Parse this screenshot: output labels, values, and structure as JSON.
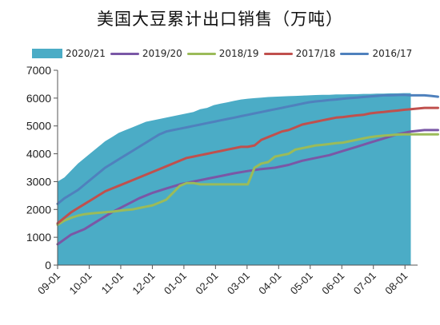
{
  "title": "美国大豆累计出口销售（万吨）",
  "colors": {
    "2020/21": "#4bacc6",
    "2019/20": "#7a57a6",
    "2018/19": "#9bbb59",
    "2017/18": "#c0504d",
    "2016/17": "#4f81bd"
  },
  "chart_data": {
    "type": "line",
    "title": "美国大豆累计出口销售（万吨）",
    "xlabel": "",
    "ylabel": "",
    "ylim": [
      0,
      7000
    ],
    "y_ticks": [
      0,
      1000,
      2000,
      3000,
      4000,
      5000,
      6000,
      7000
    ],
    "x_tick_labels": [
      "09-01",
      "10-01",
      "11-01",
      "12-01",
      "01-01",
      "02-01",
      "03-01",
      "04-01",
      "05-01",
      "06-01",
      "07-01",
      "08-01"
    ],
    "x_index_range": [
      0,
      53
    ],
    "grid": false,
    "legend_position": "top",
    "series": [
      {
        "name": "2020/21",
        "type": "area",
        "points": [
          [
            0,
            3000
          ],
          [
            1,
            3150
          ],
          [
            2,
            3400
          ],
          [
            3,
            3650
          ],
          [
            4,
            3850
          ],
          [
            5,
            4050
          ],
          [
            6,
            4250
          ],
          [
            7,
            4450
          ],
          [
            8,
            4600
          ],
          [
            9,
            4750
          ],
          [
            10,
            4850
          ],
          [
            11,
            4950
          ],
          [
            12,
            5050
          ],
          [
            13,
            5150
          ],
          [
            14,
            5200
          ],
          [
            15,
            5250
          ],
          [
            16,
            5300
          ],
          [
            17,
            5350
          ],
          [
            18,
            5400
          ],
          [
            19,
            5450
          ],
          [
            20,
            5500
          ],
          [
            21,
            5600
          ],
          [
            22,
            5650
          ],
          [
            23,
            5750
          ],
          [
            24,
            5800
          ],
          [
            25,
            5850
          ],
          [
            26,
            5900
          ],
          [
            27,
            5950
          ],
          [
            28,
            5980
          ],
          [
            29,
            6000
          ],
          [
            30,
            6020
          ],
          [
            31,
            6040
          ],
          [
            32,
            6050
          ],
          [
            33,
            6060
          ],
          [
            34,
            6070
          ],
          [
            35,
            6080
          ],
          [
            36,
            6090
          ],
          [
            37,
            6100
          ],
          [
            38,
            6110
          ],
          [
            39,
            6120
          ],
          [
            40,
            6120
          ],
          [
            41,
            6130
          ],
          [
            42,
            6130
          ],
          [
            43,
            6140
          ],
          [
            44,
            6140
          ],
          [
            45,
            6150
          ],
          [
            46,
            6150
          ],
          [
            47,
            6160
          ],
          [
            48,
            6160
          ],
          [
            49,
            6170
          ],
          [
            50,
            6170
          ],
          [
            51,
            6180
          ],
          [
            52,
            6180
          ]
        ]
      },
      {
        "name": "2019/20",
        "type": "line",
        "points": [
          [
            0,
            750
          ],
          [
            2,
            1100
          ],
          [
            4,
            1300
          ],
          [
            6,
            1600
          ],
          [
            8,
            1900
          ],
          [
            10,
            2150
          ],
          [
            12,
            2400
          ],
          [
            14,
            2600
          ],
          [
            16,
            2750
          ],
          [
            18,
            2900
          ],
          [
            20,
            3000
          ],
          [
            22,
            3100
          ],
          [
            24,
            3200
          ],
          [
            26,
            3300
          ],
          [
            28,
            3380
          ],
          [
            30,
            3450
          ],
          [
            32,
            3500
          ],
          [
            34,
            3600
          ],
          [
            36,
            3750
          ],
          [
            38,
            3850
          ],
          [
            40,
            3950
          ],
          [
            42,
            4100
          ],
          [
            44,
            4250
          ],
          [
            46,
            4400
          ],
          [
            48,
            4550
          ],
          [
            50,
            4700
          ],
          [
            52,
            4800
          ],
          [
            54,
            4850
          ],
          [
            56,
            4850
          ]
        ]
      },
      {
        "name": "2018/19",
        "type": "line",
        "points": [
          [
            0,
            1450
          ],
          [
            1,
            1600
          ],
          [
            2,
            1700
          ],
          [
            3,
            1780
          ],
          [
            4,
            1830
          ],
          [
            5,
            1860
          ],
          [
            6,
            1880
          ],
          [
            7,
            1900
          ],
          [
            8,
            1920
          ],
          [
            9,
            1950
          ],
          [
            10,
            1980
          ],
          [
            11,
            2000
          ],
          [
            12,
            2050
          ],
          [
            13,
            2100
          ],
          [
            14,
            2150
          ],
          [
            15,
            2250
          ],
          [
            16,
            2350
          ],
          [
            17,
            2600
          ],
          [
            18,
            2850
          ],
          [
            19,
            2950
          ],
          [
            20,
            2950
          ],
          [
            21,
            2900
          ],
          [
            22,
            2900
          ],
          [
            23,
            2900
          ],
          [
            24,
            2900
          ],
          [
            25,
            2900
          ],
          [
            26,
            2900
          ],
          [
            27,
            2900
          ],
          [
            28,
            2900
          ],
          [
            29,
            3500
          ],
          [
            30,
            3650
          ],
          [
            31,
            3700
          ],
          [
            32,
            3900
          ],
          [
            33,
            3950
          ],
          [
            34,
            4000
          ],
          [
            35,
            4150
          ],
          [
            36,
            4200
          ],
          [
            37,
            4250
          ],
          [
            38,
            4300
          ],
          [
            39,
            4320
          ],
          [
            40,
            4350
          ],
          [
            41,
            4380
          ],
          [
            42,
            4400
          ],
          [
            43,
            4450
          ],
          [
            44,
            4500
          ],
          [
            45,
            4550
          ],
          [
            46,
            4600
          ],
          [
            47,
            4630
          ],
          [
            48,
            4650
          ],
          [
            49,
            4670
          ],
          [
            50,
            4690
          ],
          [
            51,
            4700
          ],
          [
            52,
            4700
          ],
          [
            54,
            4700
          ],
          [
            56,
            4700
          ]
        ]
      },
      {
        "name": "2017/18",
        "type": "line",
        "points": [
          [
            0,
            1500
          ],
          [
            1,
            1700
          ],
          [
            2,
            1900
          ],
          [
            3,
            2050
          ],
          [
            4,
            2200
          ],
          [
            5,
            2350
          ],
          [
            6,
            2500
          ],
          [
            7,
            2650
          ],
          [
            8,
            2750
          ],
          [
            9,
            2850
          ],
          [
            10,
            2950
          ],
          [
            11,
            3050
          ],
          [
            12,
            3150
          ],
          [
            13,
            3250
          ],
          [
            14,
            3350
          ],
          [
            15,
            3450
          ],
          [
            16,
            3550
          ],
          [
            17,
            3650
          ],
          [
            18,
            3750
          ],
          [
            19,
            3850
          ],
          [
            20,
            3900
          ],
          [
            21,
            3950
          ],
          [
            22,
            4000
          ],
          [
            23,
            4050
          ],
          [
            24,
            4100
          ],
          [
            25,
            4150
          ],
          [
            26,
            4200
          ],
          [
            27,
            4250
          ],
          [
            28,
            4250
          ],
          [
            29,
            4300
          ],
          [
            30,
            4500
          ],
          [
            31,
            4600
          ],
          [
            32,
            4700
          ],
          [
            33,
            4800
          ],
          [
            34,
            4850
          ],
          [
            35,
            4950
          ],
          [
            36,
            5050
          ],
          [
            37,
            5100
          ],
          [
            38,
            5150
          ],
          [
            39,
            5200
          ],
          [
            40,
            5250
          ],
          [
            41,
            5300
          ],
          [
            42,
            5320
          ],
          [
            43,
            5350
          ],
          [
            44,
            5380
          ],
          [
            45,
            5400
          ],
          [
            46,
            5450
          ],
          [
            47,
            5480
          ],
          [
            48,
            5500
          ],
          [
            49,
            5530
          ],
          [
            50,
            5550
          ],
          [
            51,
            5580
          ],
          [
            52,
            5600
          ],
          [
            54,
            5650
          ],
          [
            56,
            5650
          ]
        ]
      },
      {
        "name": "2016/17",
        "type": "line",
        "points": [
          [
            0,
            2200
          ],
          [
            1,
            2400
          ],
          [
            2,
            2550
          ],
          [
            3,
            2700
          ],
          [
            4,
            2900
          ],
          [
            5,
            3100
          ],
          [
            6,
            3300
          ],
          [
            7,
            3500
          ],
          [
            8,
            3650
          ],
          [
            9,
            3800
          ],
          [
            10,
            3950
          ],
          [
            11,
            4100
          ],
          [
            12,
            4250
          ],
          [
            13,
            4400
          ],
          [
            14,
            4550
          ],
          [
            15,
            4700
          ],
          [
            16,
            4800
          ],
          [
            17,
            4850
          ],
          [
            18,
            4900
          ],
          [
            19,
            4950
          ],
          [
            20,
            5000
          ],
          [
            21,
            5050
          ],
          [
            22,
            5100
          ],
          [
            23,
            5150
          ],
          [
            24,
            5200
          ],
          [
            25,
            5250
          ],
          [
            26,
            5300
          ],
          [
            27,
            5350
          ],
          [
            28,
            5400
          ],
          [
            29,
            5450
          ],
          [
            30,
            5500
          ],
          [
            31,
            5550
          ],
          [
            32,
            5600
          ],
          [
            33,
            5650
          ],
          [
            34,
            5700
          ],
          [
            35,
            5750
          ],
          [
            36,
            5800
          ],
          [
            37,
            5850
          ],
          [
            38,
            5880
          ],
          [
            39,
            5900
          ],
          [
            40,
            5930
          ],
          [
            41,
            5950
          ],
          [
            42,
            5980
          ],
          [
            43,
            6000
          ],
          [
            44,
            6020
          ],
          [
            45,
            6040
          ],
          [
            46,
            6060
          ],
          [
            47,
            6080
          ],
          [
            48,
            6100
          ],
          [
            49,
            6100
          ],
          [
            50,
            6110
          ],
          [
            51,
            6120
          ],
          [
            52,
            6100
          ],
          [
            53,
            6100
          ],
          [
            54,
            6100
          ],
          [
            55,
            6080
          ],
          [
            56,
            6050
          ]
        ]
      }
    ]
  }
}
